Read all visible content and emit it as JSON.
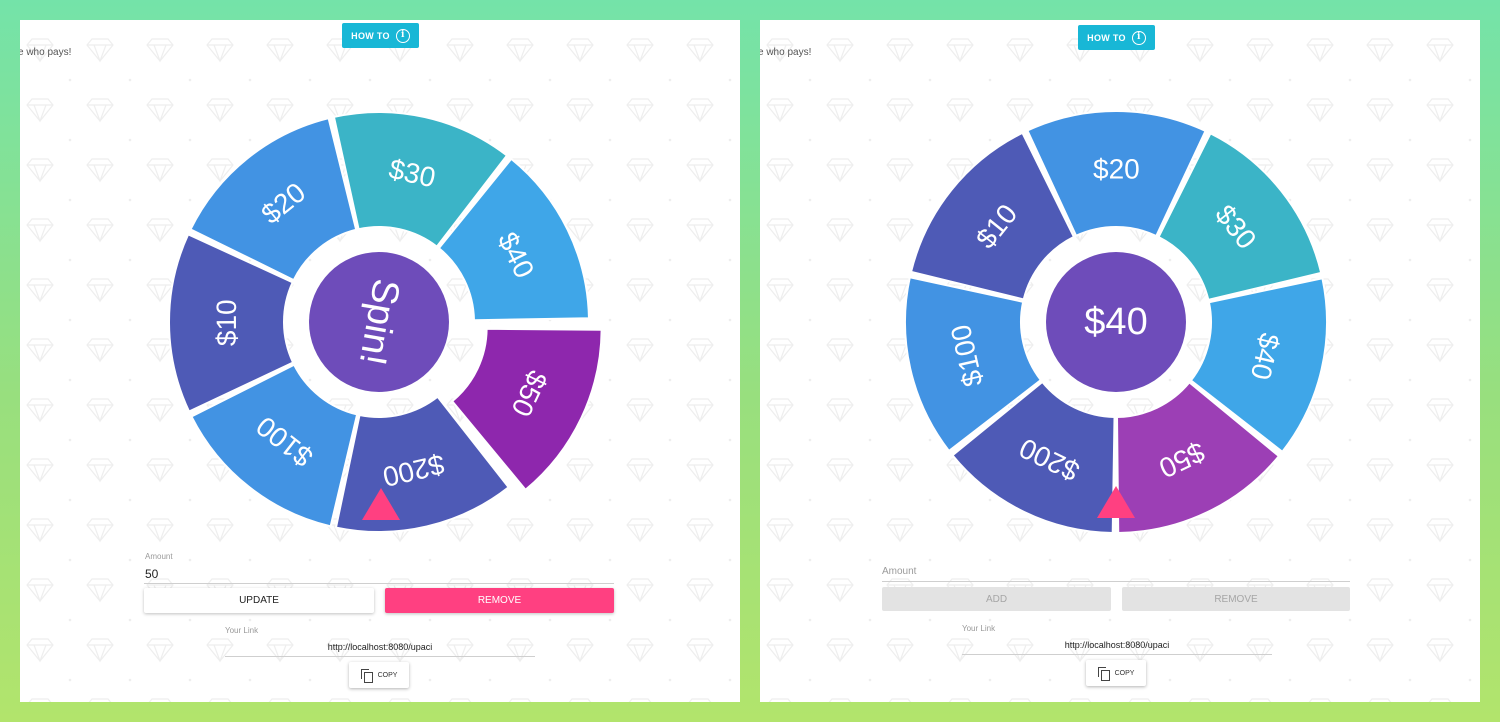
{
  "left": {
    "howto_label": "HOW TO",
    "tagline": "e who pays!",
    "center_text": "Spin!",
    "segments": [
      {
        "label": "$10",
        "color": "#4e5ab6"
      },
      {
        "label": "$20",
        "color": "#4293e3"
      },
      {
        "label": "$30",
        "color": "#3bb4c7"
      },
      {
        "label": "$40",
        "color": "#3fa6e8"
      },
      {
        "label": "$50",
        "color": "#8e27ad"
      },
      {
        "label": "$200",
        "color": "#4e5ab6"
      },
      {
        "label": "$100",
        "color": "#4293e3"
      }
    ],
    "center_color": "#6e4cba",
    "pointer_color": "#ff4081",
    "amount_label": "Amount",
    "amount_value": "50",
    "update_label": "UPDATE",
    "remove_label": "REMOVE",
    "link_label": "Your Link",
    "link_value": "http://localhost:8080/upaci",
    "copy_label": "COPY"
  },
  "right": {
    "howto_label": "HOW TO",
    "tagline": "e who pays!",
    "center_text": "$40",
    "segments": [
      {
        "label": "$10",
        "color": "#4e5ab6"
      },
      {
        "label": "$20",
        "color": "#4293e3"
      },
      {
        "label": "$30",
        "color": "#3bb4c7"
      },
      {
        "label": "$40",
        "color": "#3fa6e8"
      },
      {
        "label": "$50",
        "color": "#9c3fb5"
      },
      {
        "label": "$200",
        "color": "#4e5ab6"
      },
      {
        "label": "$100",
        "color": "#4293e3"
      }
    ],
    "center_color": "#6e4cba",
    "pointer_color": "#ff4081",
    "amount_label": "Amount",
    "add_label": "ADD",
    "remove_label": "REMOVE",
    "link_label": "Your Link",
    "link_value": "http://localhost:8080/upaci",
    "copy_label": "COPY"
  }
}
